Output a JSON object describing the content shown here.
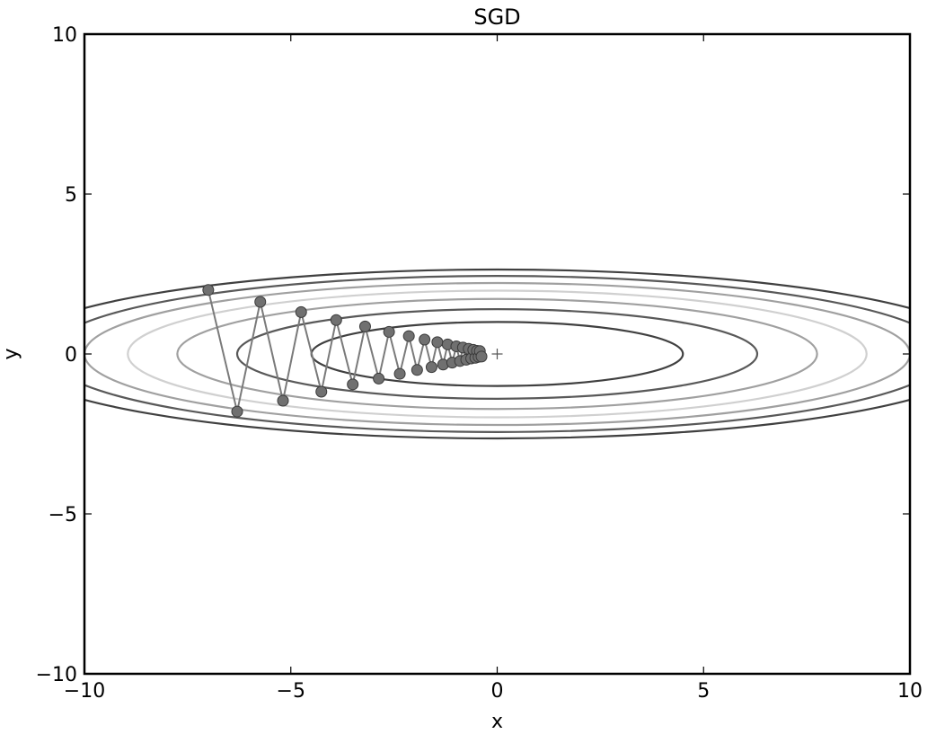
{
  "chart_data": {
    "type": "scatter",
    "title": "SGD",
    "xlabel": "x",
    "ylabel": "y",
    "xlim": [
      -10,
      10
    ],
    "ylim": [
      -10,
      10
    ],
    "xticks": [
      -10,
      -5,
      0,
      5,
      10
    ],
    "yticks": [
      -10,
      -5,
      0,
      5,
      10
    ],
    "xtick_labels": [
      "−10",
      "−5",
      "0",
      "5",
      "10"
    ],
    "ytick_labels": [
      "−10",
      "−5",
      "0",
      "5",
      "10"
    ],
    "grid": false,
    "contour_levels": [
      {
        "a": 4.5,
        "b": 1.0,
        "color": "#404040"
      },
      {
        "a": 6.3,
        "b": 1.4,
        "color": "#595959"
      },
      {
        "a": 7.75,
        "b": 1.72,
        "color": "#a0a0a0"
      },
      {
        "a": 8.95,
        "b": 1.98,
        "color": "#d0d0d0"
      },
      {
        "a": 10.0,
        "b": 2.22,
        "color": "#a0a0a0"
      },
      {
        "a": 10.9,
        "b": 2.44,
        "color": "#595959"
      },
      {
        "a": 11.9,
        "b": 2.64,
        "color": "#404040"
      }
    ],
    "minimum_marker": {
      "x": 0,
      "y": 0,
      "symbol": "+"
    },
    "series": [
      {
        "line_color": "#7a7a7a",
        "marker_color": "#707070",
        "x": [
          -7.0,
          -6.3,
          -5.74,
          -5.19,
          -4.75,
          -4.26,
          -3.9,
          -3.5,
          -3.2,
          -2.87,
          -2.62,
          -2.36,
          -2.14,
          -1.94,
          -1.76,
          -1.59,
          -1.45,
          -1.31,
          -1.2,
          -1.09,
          -0.99,
          -0.9,
          -0.83,
          -0.75,
          -0.69,
          -0.63,
          -0.58,
          -0.53,
          -0.49,
          -0.45,
          -0.42,
          -0.38
        ],
        "y": [
          2.0,
          -1.8,
          1.63,
          -1.46,
          1.31,
          -1.18,
          1.06,
          -0.95,
          0.86,
          -0.77,
          0.69,
          -0.62,
          0.56,
          -0.5,
          0.45,
          -0.41,
          0.37,
          -0.33,
          0.3,
          -0.27,
          0.24,
          -0.22,
          0.2,
          -0.18,
          0.16,
          -0.14,
          0.13,
          -0.12,
          0.1,
          -0.09,
          0.09,
          -0.08
        ]
      }
    ]
  }
}
